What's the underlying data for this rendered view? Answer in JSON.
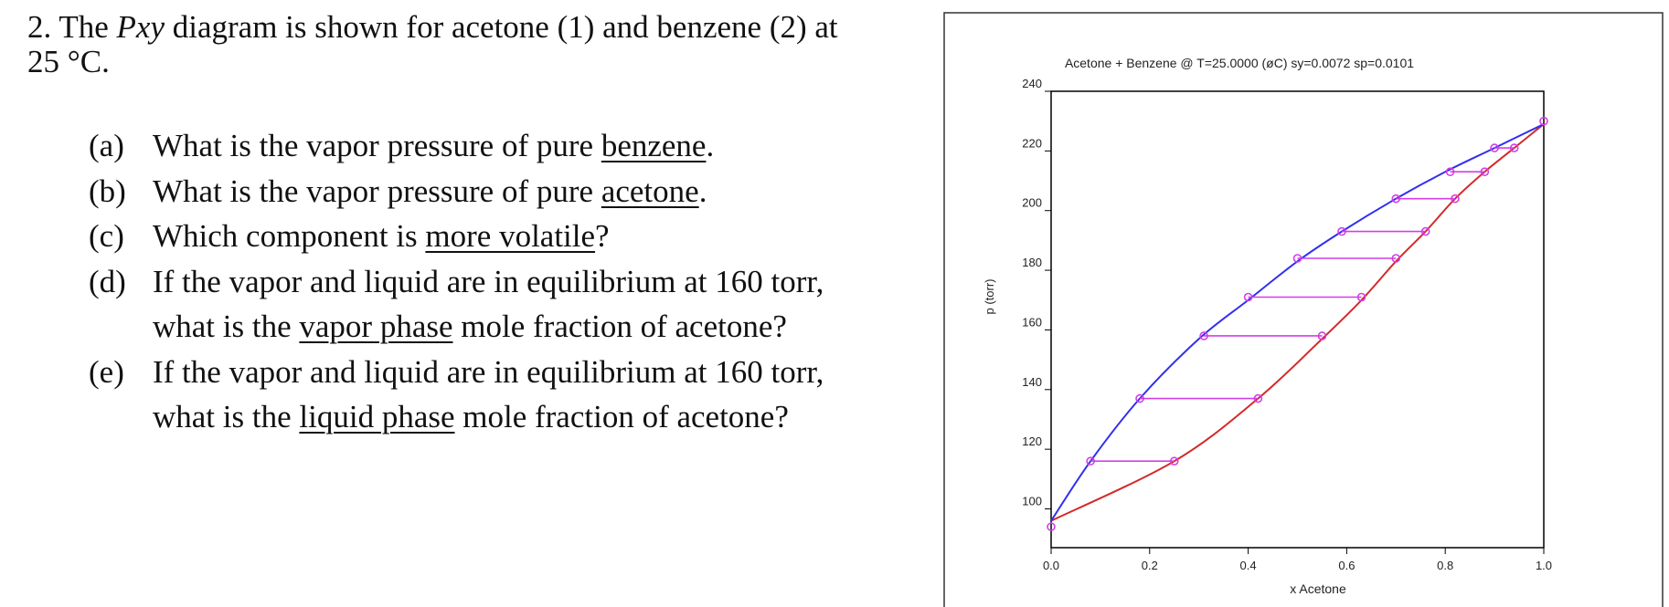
{
  "question": {
    "intro": [
      [
        "2. The ",
        {
          "text": "Pxy",
          "italic": true
        },
        " diagram is shown for acetone (1) and benzene (2) at"
      ],
      [
        "25 °C."
      ]
    ],
    "items": [
      {
        "label": "(a)",
        "lines": [
          [
            "What is the vapor pressure of pure ",
            {
              "text": "benzene",
              "underline": true
            },
            "."
          ]
        ]
      },
      {
        "label": "(b)",
        "lines": [
          [
            "What is the vapor pressure of pure ",
            {
              "text": "acetone",
              "underline": true
            },
            "."
          ]
        ]
      },
      {
        "label": "(c)",
        "lines": [
          [
            "Which component is ",
            {
              "text": "more volatile",
              "underline": true
            },
            "?"
          ]
        ]
      },
      {
        "label": "(d)",
        "lines": [
          [
            "If the vapor and liquid are in equilibrium at 160 torr,"
          ],
          [
            "what is the ",
            {
              "text": "vapor phase",
              "underline": true
            },
            " mole fraction of acetone?"
          ]
        ]
      },
      {
        "label": "(e)",
        "lines": [
          [
            "If the vapor and liquid are in equilibrium at 160 torr,"
          ],
          [
            "what is the ",
            {
              "text": "liquid phase",
              "underline": true
            },
            " mole fraction of acetone?"
          ]
        ]
      }
    ]
  },
  "chart_data": {
    "type": "line",
    "title": "Acetone + Benzene @ T=25.0000 (øC) sy=0.0072 sp=0.0101",
    "xlabel": "x Acetone",
    "ylabel": "p (torr)",
    "xlim": [
      0,
      1
    ],
    "ylim": [
      87,
      240
    ],
    "xticks": [
      {
        "value": 0,
        "label": "0.0"
      },
      0.2,
      0.4,
      0.6,
      0.8,
      {
        "value": 1,
        "label": "1.0"
      }
    ],
    "yticks": [
      100,
      120,
      140,
      160,
      180,
      200,
      220,
      240
    ],
    "series": [
      {
        "color": "#d42a2a",
        "x": [
          0,
          0.25,
          0.42,
          0.55,
          0.63,
          0.7,
          0.76,
          0.82,
          0.88,
          0.94,
          1
        ],
        "values": [
          96,
          116,
          137,
          157,
          170,
          183,
          193,
          204,
          213,
          221,
          229
        ]
      },
      {
        "color": "#3030f0",
        "x": [
          0,
          0.08,
          0.18,
          0.3,
          0.4,
          0.5,
          0.59,
          0.7,
          0.8,
          0.9,
          1
        ],
        "values": [
          96,
          116,
          137,
          157,
          170,
          183,
          193,
          204,
          213,
          221,
          229
        ]
      }
    ],
    "tie_lines": {
      "color": "#d23ee8",
      "x_liquid": [
        0.25,
        0.42,
        0.55,
        0.63,
        0.7,
        0.76,
        0.82,
        0.88,
        0.94
      ],
      "y_vapor": [
        0.08,
        0.18,
        0.31,
        0.4,
        0.5,
        0.59,
        0.7,
        0.81,
        0.9
      ],
      "p": [
        116,
        137,
        158,
        171,
        184,
        193,
        204,
        213,
        221
      ]
    },
    "points": {
      "x": [
        0,
        1
      ],
      "values": [
        94,
        230
      ]
    }
  }
}
